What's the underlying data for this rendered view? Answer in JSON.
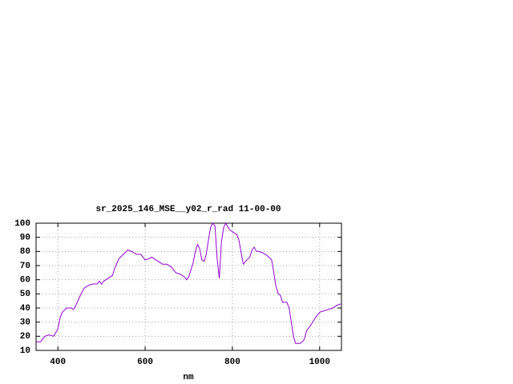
{
  "chart_data": {
    "type": "line",
    "title": "sr_2025_146_MSE__y02_r_rad 11-00-00",
    "xlabel": "nm",
    "x": [
      350,
      360,
      370,
      380,
      390,
      400,
      405,
      410,
      420,
      430,
      435,
      440,
      450,
      460,
      470,
      480,
      490,
      495,
      500,
      505,
      510,
      520,
      525,
      530,
      540,
      550,
      560,
      570,
      580,
      590,
      600,
      610,
      615,
      625,
      640,
      650,
      660,
      665,
      670,
      680,
      690,
      695,
      700,
      710,
      715,
      720,
      725,
      730,
      735,
      740,
      745,
      750,
      755,
      760,
      765,
      770,
      775,
      780,
      785,
      790,
      795,
      800,
      805,
      810,
      815,
      820,
      825,
      830,
      840,
      845,
      850,
      855,
      860,
      870,
      875,
      880,
      890,
      895,
      900,
      905,
      910,
      915,
      925,
      930,
      935,
      940,
      945,
      955,
      960,
      965,
      970,
      980,
      990,
      1000,
      1010,
      1020,
      1030,
      1040,
      1050
    ],
    "series": [
      {
        "color": "#9400d3",
        "values": [
          16,
          16,
          20,
          21,
          20,
          25,
          33,
          37,
          40,
          40,
          39,
          41,
          48,
          54,
          56,
          57,
          57,
          59,
          57,
          59,
          60,
          62,
          63,
          68,
          75,
          78,
          81,
          80,
          78,
          78,
          74,
          75,
          76,
          74,
          71,
          71,
          69,
          67,
          65,
          64,
          62,
          60,
          62,
          72,
          80,
          85,
          82,
          74,
          73,
          78,
          88,
          97,
          100,
          98,
          75,
          61,
          87,
          97,
          100,
          97,
          95,
          94,
          93,
          92,
          88,
          79,
          71,
          73,
          76,
          81,
          83,
          80,
          80,
          79,
          78,
          77,
          74,
          65,
          55,
          50,
          49,
          44,
          44,
          40,
          30,
          20,
          15,
          15,
          16,
          18,
          24,
          28,
          33,
          37,
          38,
          39,
          40,
          42,
          43
        ]
      }
    ],
    "xlim": [
      350,
      1050
    ],
    "xticks": [
      400,
      600,
      800,
      1000
    ],
    "ylim": [
      10,
      100
    ],
    "yticks": [
      10,
      20,
      30,
      40,
      50,
      60,
      70,
      80,
      90,
      100
    ],
    "grid": true
  }
}
